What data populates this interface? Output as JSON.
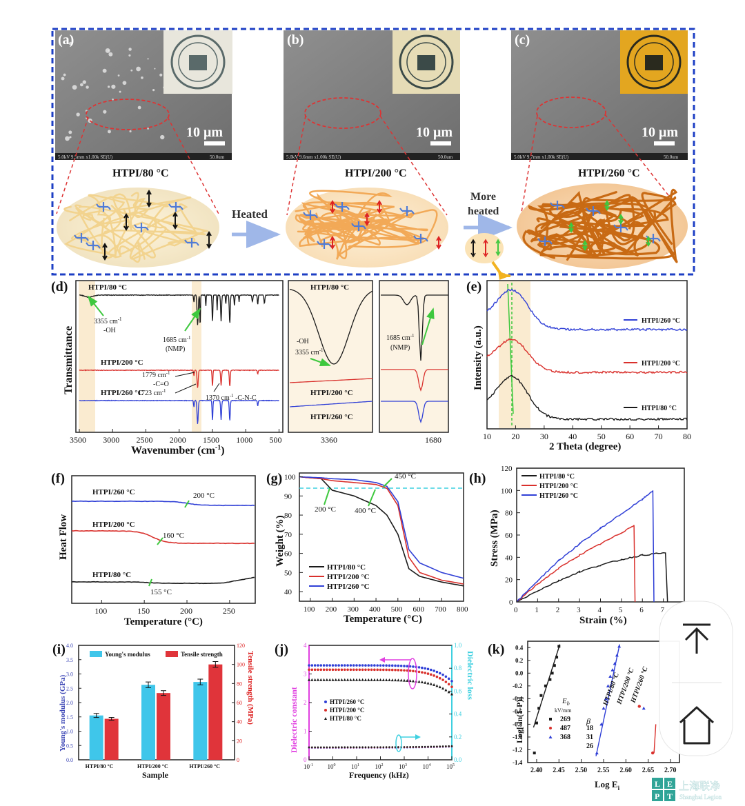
{
  "colors": {
    "black": "#1a1a1a",
    "red": "#d9302c",
    "blue": "#2f3fd6",
    "frame": "#1d3fc4",
    "magenta": "#e040e0",
    "cyan": "#3fd0e0",
    "highlight": "#f6ddb0",
    "green": "#3ec83e",
    "ybar": "#3fc6ea",
    "tbar": "#e0343a",
    "ybar_axis": "#3b45b5",
    "tbar_axis": "#d22"
  },
  "panels": {
    "a": {
      "tag": "(a)",
      "scale": "10 μm",
      "sem_info": "5.0kV 9.5mm x1.00k SE(U)",
      "sem_scale": "50.0um",
      "label": "HTPI/80 °C"
    },
    "b": {
      "tag": "(b)",
      "scale": "10 μm",
      "sem_info": "5.0kV 9.6mm x1.00k SE(U)",
      "sem_scale": "50.0um",
      "label": "HTPI/200 °C"
    },
    "c": {
      "tag": "(c)",
      "scale": "10 μm",
      "sem_info": "5.0kV 9.7mm x1.00k SE(U)",
      "sem_scale": "50.0um",
      "label": "HTPI/260 °C"
    },
    "heated": "Heated",
    "more_heated_1": "More",
    "more_heated_2": "heated"
  },
  "ftir": {
    "tag": "(d)",
    "ylabel": "Transmittance",
    "xlabel": "Wavenumber (cm",
    "xlabel_sup": "-1",
    "xlabel_end": ")",
    "xticks": [
      3500,
      3000,
      2500,
      2000,
      1500,
      1000,
      500
    ],
    "labels": {
      "s80": "HTPI/80 °C",
      "s200": "HTPI/200 °C",
      "s260": "HTPI/260 °C"
    },
    "ann": {
      "oh1": "3355 cm",
      "oh1_sup": "-1",
      "oh2": "-OH",
      "nmp1": "1685 cm",
      "nmp1_sup": "-1",
      "nmp2": "(NMP)",
      "c1": "1779 cm",
      "c1_sup": "-1",
      "c2": "-C=O",
      "c3": "1723 cm",
      "c3_sup": "-1",
      "cnc": "1370 cm",
      "cnc_sup": "-1",
      "cnc2": " -C-N-C"
    },
    "zoom1": {
      "label80": "HTPI/80 °C",
      "label200": "HTPI/200 °C",
      "label260": "HTPI/260 °C",
      "oh": "-OH",
      "peak": "3355 cm",
      "peak_sup": "-1",
      "tick": "3360"
    },
    "zoom2": {
      "peak": "1685 cm",
      "peak_sup": "-1",
      "nmp": "(NMP)",
      "tick": "1680"
    }
  },
  "xrd": {
    "tag": "(e)",
    "ylabel": "Intensity (a.u.)",
    "xlabel": "2 Theta (degree)",
    "xticks": [
      10,
      20,
      30,
      40,
      50,
      60,
      70,
      80
    ],
    "labels": {
      "s260": "HTPI/260 °C",
      "s200": "HTPI/200 °C",
      "s80": "HTPI/80 °C"
    }
  },
  "dsc": {
    "tag": "(f)",
    "ylabel": "Heat Flow",
    "xlabel": "Temperature (°C)",
    "xticks": [
      100,
      150,
      200,
      250
    ],
    "labels": {
      "s260": "HTPI/260 °C",
      "s200": "HTPI/200 °C",
      "s80": "HTPI/80 °C"
    },
    "ann": {
      "t260": "200 °C",
      "t200": "160 °C",
      "t80": "155 °C"
    }
  },
  "tga": {
    "tag": "(g)",
    "ylabel": "Weight (%)",
    "xlabel": "Temperature (°C)",
    "xticks": [
      100,
      200,
      300,
      400,
      500,
      600,
      700,
      800
    ],
    "yticks": [
      40,
      50,
      60,
      70,
      80,
      90,
      100
    ],
    "legend": [
      "HTPI/80 °C",
      "HTPI/200 °C",
      "HTPI/260 °C"
    ],
    "ann": {
      "a200": "200 °C",
      "a400": "400 °C",
      "a450": "450 °C"
    }
  },
  "stress": {
    "tag": "(h)",
    "ylabel": "Stress (MPa)",
    "xlabel": "Strain (%)",
    "xticks": [
      0,
      1,
      2,
      3,
      4,
      5,
      6,
      7
    ],
    "yticks": [
      0,
      20,
      40,
      60,
      80,
      100,
      120
    ],
    "legend": [
      "HTPI/80 °C",
      "HTPI/200 °C",
      "HTPI/260 °C"
    ]
  },
  "mech": {
    "tag": "(i)",
    "ylabel_left": "Young's modulus (GPa)",
    "ylabel_right": "Tensile strength (MPa)",
    "xlabel": "Sample",
    "legend": [
      "Young's modulus",
      "Tensile strength"
    ],
    "categories": [
      "HTPI/80 °C",
      "HTPI/200 °C",
      "HTPI/260 °C"
    ],
    "yticks_left": [
      "0.0",
      "0.5",
      "1.0",
      "1.5",
      "2.0",
      "2.5",
      "3.0",
      "3.5",
      "4.0"
    ],
    "yticks_right": [
      "0",
      "20",
      "40",
      "60",
      "80",
      "100",
      "120"
    ]
  },
  "diel": {
    "tag": "(j)",
    "ylabel_left": "Dielectric constant",
    "ylabel_right": "Dielectric loss",
    "xlabel": "Frequency (kHz)",
    "yticks_left": [
      "0",
      "1",
      "2",
      "3",
      "4"
    ],
    "yticks_right": [
      "0.0",
      "0.2",
      "0.4",
      "0.6",
      "0.8",
      "1.0"
    ],
    "xticks": [
      "10",
      "10",
      "10",
      "10",
      "10",
      "10",
      "10"
    ],
    "xticks_sup": [
      "-1",
      "0",
      "1",
      "2",
      "3",
      "4",
      "5"
    ],
    "legend": [
      "HTPI/260 °C",
      "HTPI/200 °C",
      "HTPI/80 °C"
    ]
  },
  "weibull": {
    "tag": "(k)",
    "ylabel": "Log[-ln(1-P)]",
    "xlabel": "Log E",
    "xlabel_sub": "i",
    "xticks": [
      "2.40",
      "2.45",
      "2.50",
      "2.55",
      "2.60",
      "2.65",
      "2.70"
    ],
    "yticks": [
      "0.4",
      "0.2",
      "0.0",
      "-0.2",
      "-0.4",
      "-0.6",
      "-0.8",
      "-1.0",
      "-1.2",
      "-1.4"
    ],
    "table": {
      "eb": "E",
      "eb_sub": "b",
      "unit": "kV/mm",
      "beta": "β",
      "rows": [
        [
          "269",
          "18"
        ],
        [
          "487",
          "31"
        ],
        [
          "368",
          "26"
        ]
      ]
    },
    "labels": [
      "HTPI/80 °C",
      "HTPI/200 °C",
      "HTPI/260 °C"
    ]
  },
  "watermark": {
    "text": "上海联净",
    "sub": "Shanghai Legion",
    "logo": [
      "L",
      "E",
      "P",
      "T"
    ]
  },
  "chart_data": [
    {
      "type": "line",
      "title": "",
      "xlabel": "Wavenumber (cm-1)",
      "ylabel": "Transmittance",
      "xlim": [
        3500,
        500
      ],
      "series": [
        {
          "name": "HTPI/80 °C"
        },
        {
          "name": "HTPI/200 °C"
        },
        {
          "name": "HTPI/260 °C"
        }
      ]
    },
    {
      "type": "line",
      "title": "",
      "xlabel": "2 Theta (degree)",
      "ylabel": "Intensity (a.u.)",
      "xlim": [
        10,
        80
      ],
      "series": [
        {
          "name": "HTPI/260 °C"
        },
        {
          "name": "HTPI/200 °C"
        },
        {
          "name": "HTPI/80 °C"
        }
      ]
    },
    {
      "type": "line",
      "title": "",
      "xlabel": "Temperature (°C)",
      "ylabel": "Heat Flow",
      "xlim": [
        65,
        280
      ],
      "series": [
        {
          "name": "HTPI/260 °C"
        },
        {
          "name": "HTPI/200 °C"
        },
        {
          "name": "HTPI/80 °C"
        }
      ]
    },
    {
      "type": "line",
      "title": "",
      "xlabel": "Temperature (°C)",
      "ylabel": "Weight (%)",
      "xlim": [
        50,
        800
      ],
      "ylim": [
        35,
        102
      ],
      "series": [
        {
          "name": "HTPI/80 °C",
          "x": [
            50,
            150,
            200,
            300,
            400,
            450,
            500,
            550,
            600,
            700,
            800
          ],
          "y": [
            100,
            99,
            93,
            90,
            85,
            80,
            70,
            52,
            48,
            45,
            43
          ]
        },
        {
          "name": "HTPI/200 °C",
          "x": [
            50,
            150,
            200,
            300,
            400,
            450,
            500,
            550,
            600,
            700,
            800
          ],
          "y": [
            100,
            99,
            98,
            97,
            96,
            94,
            85,
            58,
            50,
            46,
            44
          ]
        },
        {
          "name": "HTPI/260 °C",
          "x": [
            50,
            150,
            200,
            300,
            400,
            450,
            500,
            550,
            600,
            700,
            800
          ],
          "y": [
            100,
            99.5,
            99,
            98.5,
            97,
            95,
            87,
            62,
            55,
            50,
            47
          ]
        }
      ]
    },
    {
      "type": "line",
      "title": "",
      "xlabel": "Strain (%)",
      "ylabel": "Stress (MPa)",
      "xlim": [
        0,
        8
      ],
      "ylim": [
        0,
        120
      ],
      "series": [
        {
          "name": "HTPI/80 °C",
          "x": [
            0,
            1,
            2,
            3,
            4,
            5,
            6,
            7.1,
            7.2
          ],
          "y": [
            0,
            10,
            19,
            27,
            33,
            38,
            42,
            44,
            0
          ]
        },
        {
          "name": "HTPI/200 °C",
          "x": [
            0,
            1,
            2,
            3,
            4,
            5,
            5.6,
            5.65
          ],
          "y": [
            0,
            16,
            30,
            42,
            52,
            62,
            69,
            0
          ]
        },
        {
          "name": "HTPI/260 °C",
          "x": [
            0,
            1,
            2,
            3,
            4,
            5,
            6,
            6.5,
            6.55
          ],
          "y": [
            0,
            19,
            37,
            52,
            66,
            79,
            92,
            100,
            0
          ]
        }
      ]
    },
    {
      "type": "bar",
      "title": "",
      "categories": [
        "HTPI/80 °C",
        "HTPI/200 °C",
        "HTPI/260 °C"
      ],
      "xlabel": "Sample",
      "series": [
        {
          "name": "Young's modulus",
          "axis": "left",
          "values": [
            1.55,
            2.62,
            2.72
          ],
          "errors": [
            0.07,
            0.1,
            0.1
          ],
          "ylim": [
            0,
            4
          ]
        },
        {
          "name": "Tensile strength",
          "axis": "right",
          "values": [
            43,
            70,
            100
          ],
          "errors": [
            1.5,
            2.5,
            3
          ],
          "ylim": [
            0,
            120
          ]
        }
      ]
    },
    {
      "type": "scatter",
      "title": "",
      "xlabel": "Frequency (kHz)",
      "ylabel": "Dielectric constant",
      "xscale": "log",
      "xlim": [
        0.1,
        100000
      ],
      "ylim": [
        0,
        4
      ],
      "series": [
        {
          "name": "HTPI/260 °C",
          "x": [
            0.1,
            1,
            10,
            100,
            1000,
            10000,
            100000
          ],
          "y": [
            3.3,
            3.25,
            3.23,
            3.22,
            3.2,
            3.1,
            2.75
          ]
        },
        {
          "name": "HTPI/200 °C",
          "x": [
            0.1,
            1,
            10,
            100,
            1000,
            10000,
            100000
          ],
          "y": [
            3.15,
            3.12,
            3.1,
            3.08,
            3.05,
            2.98,
            2.55
          ]
        },
        {
          "name": "HTPI/80 °C",
          "x": [
            0.1,
            1,
            10,
            100,
            1000,
            10000,
            100000
          ],
          "y": [
            2.8,
            2.78,
            2.77,
            2.76,
            2.74,
            2.7,
            2.3
          ]
        }
      ]
    },
    {
      "type": "scatter",
      "title": "",
      "xlabel": "Log Ei",
      "ylabel": "Log[-ln(1-P)]",
      "xlim": [
        2.38,
        2.72
      ],
      "ylim": [
        -1.4,
        0.5
      ],
      "series": [
        {
          "name": "HTPI/80 °C",
          "x": [
            2.395,
            2.4,
            2.405,
            2.41,
            2.42,
            2.43,
            2.435,
            2.44,
            2.445,
            2.45
          ],
          "y": [
            -1.25,
            -0.78,
            -0.55,
            -0.35,
            -0.2,
            -0.1,
            0.0,
            0.12,
            0.25,
            0.42
          ]
        },
        {
          "name": "HTPI/200 °C",
          "x": [
            2.63,
            2.66
          ],
          "y": [
            -0.52,
            -1.25
          ]
        },
        {
          "name": "HTPI/260 °C",
          "x": [
            2.535,
            2.545,
            2.55,
            2.555,
            2.56,
            2.565,
            2.57,
            2.575,
            2.58,
            2.585,
            2.64
          ],
          "y": [
            -1.25,
            -0.8,
            -0.55,
            -0.4,
            -0.2,
            -0.05,
            0.05,
            0.15,
            0.28,
            0.42,
            -0.55
          ]
        }
      ]
    }
  ]
}
